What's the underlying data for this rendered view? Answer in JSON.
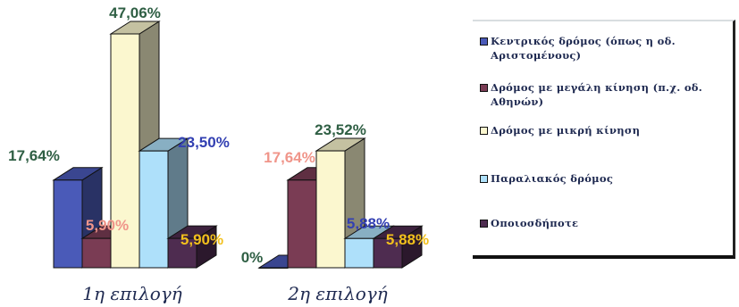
{
  "chart_data": {
    "type": "bar",
    "categories": [
      "1η επιλογή",
      "2η επιλογή"
    ],
    "series": [
      {
        "name": "Κεντρικός δρόμος (όπως η οδ. Αριστομένους)",
        "values": [
          17.64,
          0
        ],
        "labels": [
          "17,64%",
          "0%"
        ],
        "color": "#4a5ab8"
      },
      {
        "name": "Δρόμος με μεγάλη κίνηση (π.χ. οδ. Αθηνών)",
        "values": [
          5.9,
          17.64
        ],
        "labels": [
          "5,90%",
          "17,64%"
        ],
        "color": "#7a3c54"
      },
      {
        "name": "Δρόμος με μικρή κίνηση",
        "values": [
          47.06,
          23.52
        ],
        "labels": [
          "47,06%",
          "23,52%"
        ],
        "color": "#fbf7cf"
      },
      {
        "name": "Παραλιακός δρόμος",
        "values": [
          23.5,
          5.88
        ],
        "labels": [
          "23,50%",
          "5,88%"
        ],
        "color": "#aee0fa"
      },
      {
        "name": "Οποιοσδήποτε",
        "values": [
          5.9,
          5.88
        ],
        "labels": [
          "5,90%",
          "5,88%"
        ],
        "color": "#4e2c50"
      }
    ],
    "label_colors": [
      "#2f5f44",
      "#f0958a",
      "#2f5f44",
      "#3340b2",
      "#f2c01c"
    ],
    "ylim": [
      0,
      47.06
    ],
    "grid": false,
    "legend_position": "right"
  }
}
